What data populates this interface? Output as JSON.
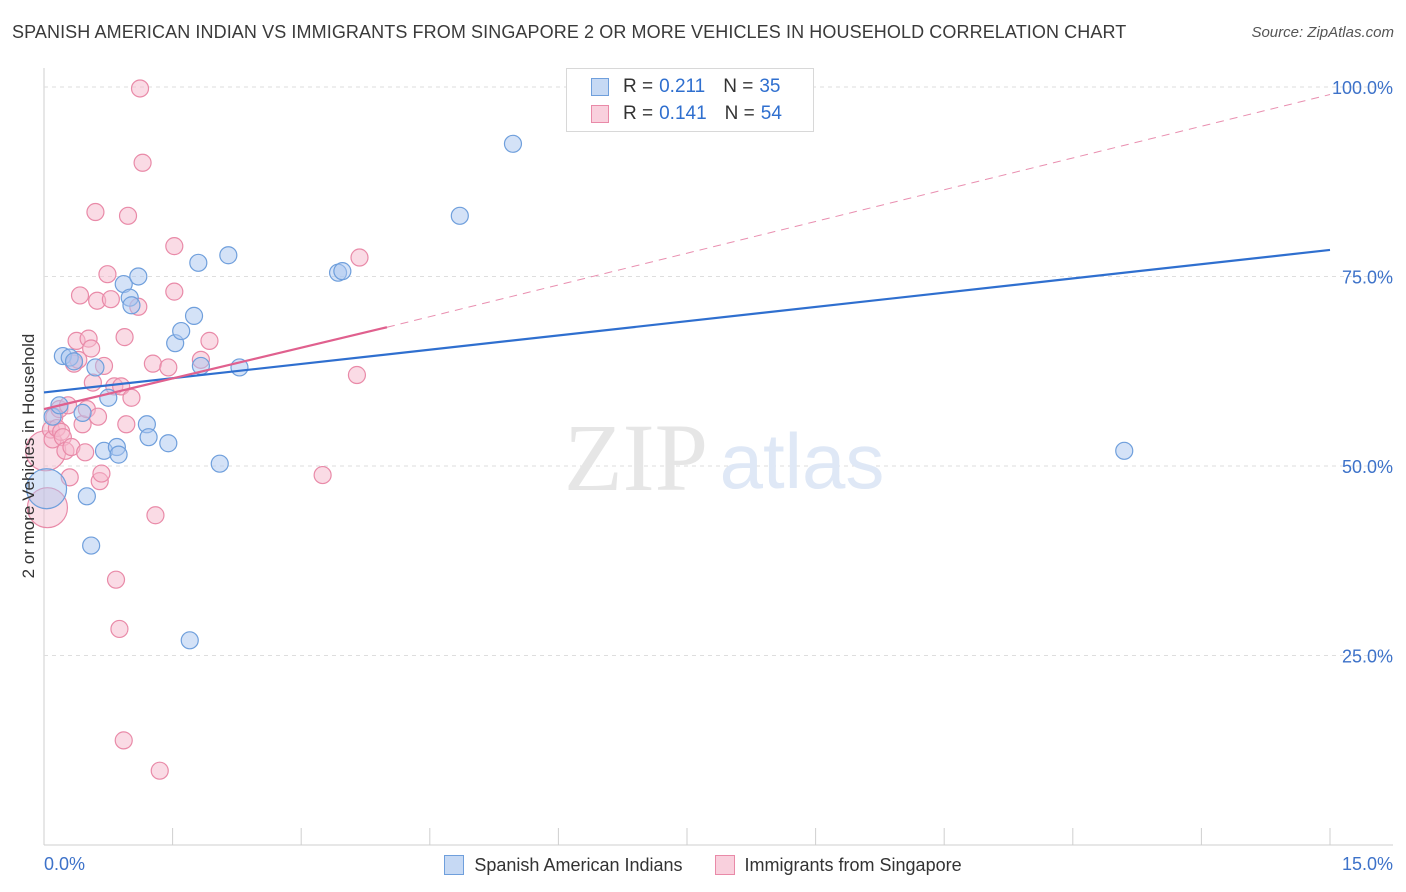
{
  "title": "SPANISH AMERICAN INDIAN VS IMMIGRANTS FROM SINGAPORE 2 OR MORE VEHICLES IN HOUSEHOLD CORRELATION CHART",
  "source": "Source: ZipAtlas.com",
  "watermark": {
    "zip": "ZIP",
    "atlas": "atlas"
  },
  "legend": {
    "series1": {
      "r_label": "R =",
      "r_value": "0.211",
      "n_label": "N =",
      "n_value": "35"
    },
    "series2": {
      "r_label": "R =",
      "r_value": "0.141",
      "n_label": "N =",
      "n_value": "54"
    }
  },
  "colors": {
    "blue_fill": "#a9c6ef",
    "blue_stroke": "#6f9fdc",
    "blue_line": "#2f6fcf",
    "pink_fill": "#f5b8cb",
    "pink_stroke": "#e98aa8",
    "pink_line": "#e0608e",
    "tick_label": "#3d72c9"
  },
  "chart_data": {
    "type": "scatter",
    "title": "SPANISH AMERICAN INDIAN VS IMMIGRANTS FROM SINGAPORE 2 OR MORE VEHICLES IN HOUSEHOLD CORRELATION CHART",
    "xlabel": "",
    "ylabel": "2 or more Vehicles in Household",
    "xlim": [
      0,
      15
    ],
    "ylim": [
      0,
      102.5
    ],
    "x_tick_labels": [
      "0.0%",
      "15.0%"
    ],
    "y_ticks": [
      25,
      50,
      75,
      100
    ],
    "y_tick_labels": [
      "25.0%",
      "50.0%",
      "75.0%",
      "100.0%"
    ],
    "series": [
      {
        "name": "Spanish American Indians",
        "color": "#6f9fdc",
        "trend": {
          "x0": 0,
          "y0": 59.7,
          "x1": 15,
          "y1": 78.5
        },
        "points": [
          {
            "x": 0.03,
            "y": 47.0,
            "big": true
          },
          {
            "x": 0.1,
            "y": 56.5
          },
          {
            "x": 0.18,
            "y": 58.0
          },
          {
            "x": 0.22,
            "y": 64.5
          },
          {
            "x": 0.3,
            "y": 64.3
          },
          {
            "x": 0.35,
            "y": 63.8
          },
          {
            "x": 0.45,
            "y": 57.0
          },
          {
            "x": 0.5,
            "y": 46.0
          },
          {
            "x": 0.55,
            "y": 39.5
          },
          {
            "x": 0.6,
            "y": 63.0
          },
          {
            "x": 0.7,
            "y": 52.0
          },
          {
            "x": 0.75,
            "y": 59.0
          },
          {
            "x": 0.85,
            "y": 52.5
          },
          {
            "x": 0.87,
            "y": 51.5
          },
          {
            "x": 0.93,
            "y": 74.0
          },
          {
            "x": 1.0,
            "y": 72.2
          },
          {
            "x": 1.02,
            "y": 71.2
          },
          {
            "x": 1.1,
            "y": 75.0
          },
          {
            "x": 1.2,
            "y": 55.5
          },
          {
            "x": 1.22,
            "y": 53.8
          },
          {
            "x": 1.45,
            "y": 53.0
          },
          {
            "x": 1.53,
            "y": 66.2
          },
          {
            "x": 1.6,
            "y": 67.8
          },
          {
            "x": 1.7,
            "y": 27.0
          },
          {
            "x": 1.75,
            "y": 69.8
          },
          {
            "x": 1.8,
            "y": 76.8
          },
          {
            "x": 1.83,
            "y": 63.2
          },
          {
            "x": 2.05,
            "y": 50.3
          },
          {
            "x": 2.15,
            "y": 77.8
          },
          {
            "x": 2.28,
            "y": 63.0
          },
          {
            "x": 3.43,
            "y": 75.5
          },
          {
            "x": 3.48,
            "y": 75.7
          },
          {
            "x": 4.85,
            "y": 83.0
          },
          {
            "x": 5.47,
            "y": 92.5
          },
          {
            "x": 12.6,
            "y": 52.0
          }
        ]
      },
      {
        "name": "Immigrants from Singapore",
        "color": "#e98aa8",
        "trend": {
          "x0": 0,
          "y0": 57.5,
          "x1": 4.0,
          "y1": 68.3,
          "dash_to": {
            "x": 15,
            "y": 99.0
          }
        },
        "points": [
          {
            "x": 0.02,
            "y": 52.0,
            "big": true
          },
          {
            "x": 0.04,
            "y": 44.5,
            "big": true
          },
          {
            "x": 0.08,
            "y": 54.8
          },
          {
            "x": 0.1,
            "y": 53.5
          },
          {
            "x": 0.12,
            "y": 56.5
          },
          {
            "x": 0.15,
            "y": 55.0
          },
          {
            "x": 0.18,
            "y": 57.5
          },
          {
            "x": 0.2,
            "y": 54.5
          },
          {
            "x": 0.22,
            "y": 53.8
          },
          {
            "x": 0.25,
            "y": 52.0
          },
          {
            "x": 0.28,
            "y": 58.0
          },
          {
            "x": 0.3,
            "y": 48.5
          },
          {
            "x": 0.32,
            "y": 52.5
          },
          {
            "x": 0.35,
            "y": 63.5
          },
          {
            "x": 0.38,
            "y": 66.5
          },
          {
            "x": 0.4,
            "y": 64.0
          },
          {
            "x": 0.42,
            "y": 72.5
          },
          {
            "x": 0.45,
            "y": 55.5
          },
          {
            "x": 0.48,
            "y": 51.8
          },
          {
            "x": 0.5,
            "y": 57.5
          },
          {
            "x": 0.52,
            "y": 66.8
          },
          {
            "x": 0.55,
            "y": 65.5
          },
          {
            "x": 0.57,
            "y": 61.0
          },
          {
            "x": 0.6,
            "y": 83.5
          },
          {
            "x": 0.62,
            "y": 71.8
          },
          {
            "x": 0.63,
            "y": 56.5
          },
          {
            "x": 0.65,
            "y": 48.0
          },
          {
            "x": 0.67,
            "y": 49.0
          },
          {
            "x": 0.7,
            "y": 63.2
          },
          {
            "x": 0.74,
            "y": 75.3
          },
          {
            "x": 0.78,
            "y": 72.0
          },
          {
            "x": 0.82,
            "y": 60.5
          },
          {
            "x": 0.84,
            "y": 35.0
          },
          {
            "x": 0.88,
            "y": 28.5
          },
          {
            "x": 0.9,
            "y": 60.5
          },
          {
            "x": 0.93,
            "y": 13.8
          },
          {
            "x": 0.94,
            "y": 67.0
          },
          {
            "x": 0.96,
            "y": 55.5
          },
          {
            "x": 0.98,
            "y": 83.0
          },
          {
            "x": 1.02,
            "y": 59.0
          },
          {
            "x": 1.1,
            "y": 71.0
          },
          {
            "x": 1.15,
            "y": 90.0
          },
          {
            "x": 1.12,
            "y": 99.8
          },
          {
            "x": 1.27,
            "y": 63.5
          },
          {
            "x": 1.3,
            "y": 43.5
          },
          {
            "x": 1.35,
            "y": 9.8
          },
          {
            "x": 1.52,
            "y": 79.0
          },
          {
            "x": 1.52,
            "y": 73.0
          },
          {
            "x": 1.45,
            "y": 63.0
          },
          {
            "x": 1.83,
            "y": 64.0
          },
          {
            "x": 1.93,
            "y": 66.5
          },
          {
            "x": 3.25,
            "y": 48.8
          },
          {
            "x": 3.65,
            "y": 62.0
          },
          {
            "x": 3.68,
            "y": 77.5
          }
        ]
      }
    ]
  }
}
